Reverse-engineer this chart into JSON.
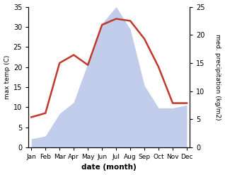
{
  "months": [
    "Jan",
    "Feb",
    "Mar",
    "Apr",
    "May",
    "Jun",
    "Jul",
    "Aug",
    "Sep",
    "Oct",
    "Nov",
    "Dec"
  ],
  "month_positions": [
    0,
    1,
    2,
    3,
    4,
    5,
    6,
    7,
    8,
    9,
    10,
    11
  ],
  "temperature": [
    7.5,
    8.5,
    21.0,
    23.0,
    20.5,
    30.5,
    32.0,
    31.5,
    27.0,
    20.0,
    11.0,
    11.0
  ],
  "precipitation": [
    1.5,
    2.0,
    6.0,
    8.0,
    15.0,
    22.0,
    25.0,
    21.0,
    11.0,
    7.0,
    7.0,
    7.5
  ],
  "temp_color": "#c0392b",
  "precip_fill_color": "#b8c4e8",
  "temp_ylim": [
    0,
    35
  ],
  "precip_ylim": [
    0,
    25
  ],
  "temp_yticks": [
    0,
    5,
    10,
    15,
    20,
    25,
    30,
    35
  ],
  "precip_yticks": [
    0,
    5,
    10,
    15,
    20,
    25
  ],
  "ylabel_left": "max temp (C)",
  "ylabel_right": "med. precipitation (kg/m2)",
  "xlabel": "date (month)",
  "line_width": 1.8,
  "background_color": "#ffffff"
}
